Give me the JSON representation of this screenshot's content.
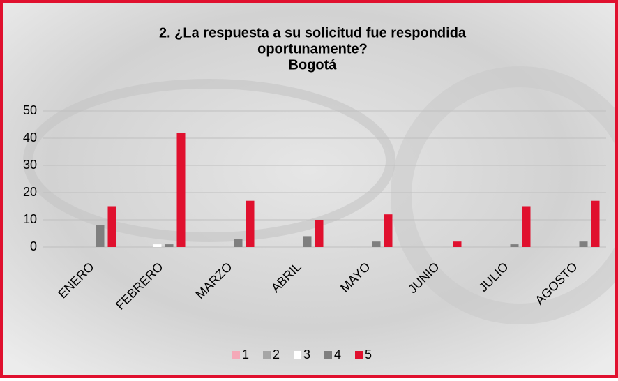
{
  "chart_data": {
    "type": "bar",
    "title": [
      "2. ¿La respuesta a su solicitud fue respondida",
      "oportunamente?",
      "Bogotá"
    ],
    "categories": [
      "ENERO",
      "FEBRERO",
      "MARZO",
      "ABRIL",
      "MAYO",
      "JUNIO",
      "JULIO",
      "AGOSTO"
    ],
    "series": [
      {
        "name": "1",
        "color": "#f4a9b8",
        "values": [
          0,
          0,
          0,
          0,
          0,
          0,
          0,
          0
        ]
      },
      {
        "name": "2",
        "color": "#a6a6a6",
        "values": [
          0,
          0,
          0,
          0,
          0,
          0,
          0,
          0
        ]
      },
      {
        "name": "3",
        "color": "#ffffff",
        "values": [
          0,
          1,
          0,
          0,
          0,
          0,
          0,
          0
        ]
      },
      {
        "name": "4",
        "color": "#7f7f7f",
        "values": [
          8,
          1,
          3,
          4,
          2,
          0,
          1,
          2
        ]
      },
      {
        "name": "5",
        "color": "#e0102e",
        "values": [
          15,
          42,
          17,
          10,
          12,
          2,
          15,
          17
        ]
      }
    ],
    "ylim": [
      0,
      50
    ],
    "yticks": [
      0,
      10,
      20,
      30,
      40,
      50
    ],
    "grid": true,
    "legend": "bottom"
  }
}
